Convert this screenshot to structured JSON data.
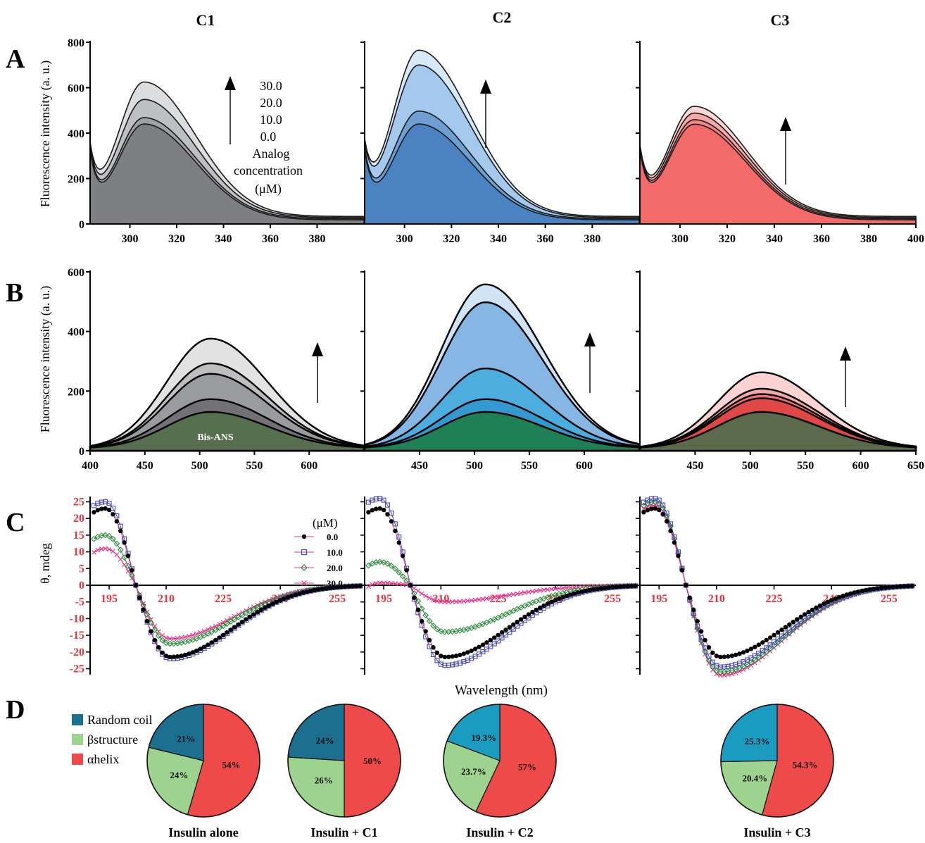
{
  "figure": {
    "column_titles": [
      "C1",
      "C2",
      "C3"
    ],
    "panel_letters": [
      "A",
      "B",
      "C",
      "D"
    ]
  },
  "colors": {
    "gray_fills": [
      "#7d7f83",
      "#9fa1a5",
      "#bdbfc2",
      "#dcdddf"
    ],
    "blue_fills": [
      "#4a82c2",
      "#6d9fd2",
      "#a5c9ec",
      "#d9e8f7"
    ],
    "red_fills": [
      "#f26a6a",
      "#f38383",
      "#f6a7a7",
      "#fbd6d6"
    ],
    "b_c1_fills": [
      "#56704f",
      "#727276",
      "#9a9b9e",
      "#bdbec0",
      "#e2e2e3"
    ],
    "b_c2_fills": [
      "#1f7f55",
      "#3399cf",
      "#4cadde",
      "#86b6e3",
      "#d1e4f5"
    ],
    "b_c3_fills": [
      "#5a6a4a",
      "#e04848",
      "#f07070",
      "#f5a8a8",
      "#fbd3d3"
    ],
    "cd_series": [
      "#000000",
      "#4646b4",
      "#2a8a3a",
      "#e8308a"
    ],
    "cd_tick_text": "#e8323c",
    "pie_random_coil": "#1c6f8f",
    "pie_random_coil_c2": "#1a9cc0",
    "pie_beta": "#9ed28f",
    "pie_alpha": "#ee4a4a"
  },
  "chart_data": [
    {
      "panel": "A",
      "type": "area",
      "ylabel": "Fluorescence intensity (a. u.)",
      "xlim": [
        283,
        400
      ],
      "ylim": [
        0,
        800
      ],
      "yticks": [
        "0",
        "200",
        "400",
        "600",
        "800"
      ],
      "xticks": [
        [
          "300",
          "320",
          "340",
          "360",
          "380"
        ],
        [
          "300",
          "320",
          "340",
          "360",
          "380"
        ],
        [
          "300",
          "320",
          "340",
          "360",
          "380",
          "400"
        ]
      ],
      "legend_values": [
        "30.0",
        "20.0",
        "10.0",
        "0.0"
      ],
      "legend_caption": [
        "Analog",
        "concentration",
        "(μM)"
      ],
      "series_peaks_at_306nm": {
        "C1": [
          422,
          445,
          520,
          592
        ],
        "C2": [
          422,
          474,
          672,
          732
        ],
        "C3": [
          421,
          436,
          460,
          485
        ]
      }
    },
    {
      "panel": "B",
      "type": "area",
      "ylabel": "Fluorescence intensity (a. u.)",
      "xlim": [
        400,
        650
      ],
      "ylim": [
        0,
        600
      ],
      "yticks": [
        "0",
        "200",
        "400",
        "600"
      ],
      "xticks": [
        [
          "400",
          "450",
          "500",
          "550",
          "600"
        ],
        [
          "450",
          "500",
          "550",
          "600"
        ],
        [
          "450",
          "500",
          "550",
          "600",
          "650"
        ]
      ],
      "annotation": "Bis-ANS",
      "series_peaks_at_510nm": {
        "C1": [
          122,
          165,
          250,
          285,
          368
        ],
        "C2": [
          122,
          165,
          268,
          490,
          550
        ],
        "C3": [
          122,
          168,
          182,
          200,
          255
        ]
      }
    },
    {
      "panel": "C",
      "type": "scatter",
      "ylabel": "θ, mdeg",
      "xlabel": "Wavelength (nm)",
      "xlim": [
        190,
        262
      ],
      "ylim": [
        -27,
        27
      ],
      "yticks": [
        "25",
        "20",
        "15",
        "10",
        "5",
        "0",
        "-5",
        "-10",
        "-15",
        "-20",
        "-25"
      ],
      "xticks": [
        "195",
        "210",
        "225",
        "240",
        "255"
      ],
      "legend_unit": "(μM)",
      "series": [
        {
          "name": "0.0",
          "peak_195": [
            23,
            23,
            23
          ],
          "min_212": [
            -21.5,
            -21.5,
            -21.5
          ]
        },
        {
          "name": "10.0",
          "peak_195": [
            25,
            26,
            26
          ],
          "min_212": [
            -22,
            -24,
            -24.5
          ]
        },
        {
          "name": "20.0",
          "peak_195": [
            15,
            7,
            25
          ],
          "min_212": [
            -17.5,
            -14,
            -26
          ]
        },
        {
          "name": "30.0",
          "peak_195": [
            11,
            0.7,
            24
          ],
          "min_212": [
            -16,
            -5,
            -27
          ]
        }
      ]
    },
    {
      "panel": "D",
      "type": "pie",
      "legend": [
        "Random coil",
        "βstructure",
        "αhelix"
      ],
      "pies": [
        {
          "label": "Insulin alone",
          "random_coil": 21,
          "beta": 24,
          "alpha": 54,
          "texts": [
            "21%",
            "24%",
            "54%"
          ]
        },
        {
          "label": "Insulin + C1",
          "random_coil": 24,
          "beta": 26,
          "alpha": 50,
          "texts": [
            "24%",
            "26%",
            "50%"
          ]
        },
        {
          "label": "Insulin + C2",
          "random_coil": 19.3,
          "beta": 23.7,
          "alpha": 57,
          "texts": [
            "19.3%",
            "23.7%",
            "57%"
          ]
        },
        {
          "label": "Insulin + C3",
          "random_coil": 25.3,
          "beta": 20.4,
          "alpha": 54.3,
          "texts": [
            "25.3%",
            "20.4%",
            "54.3%"
          ]
        }
      ]
    }
  ]
}
